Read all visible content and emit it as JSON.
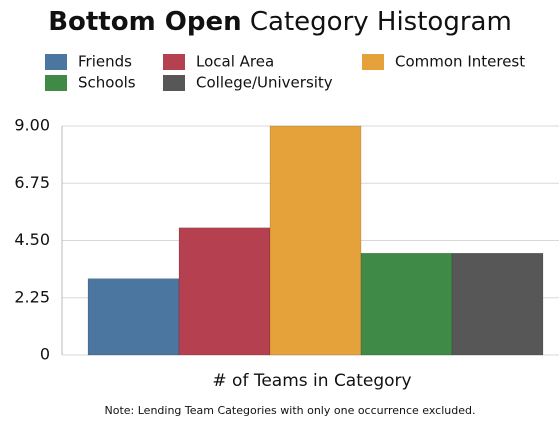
{
  "chart_data": {
    "type": "bar",
    "title_parts": [
      "Bottom Open",
      "Category Histogram"
    ],
    "x_label": "# of Teams in Category",
    "note": "Note: Lending Team Categories with only one occurrence excluded.",
    "series": [
      {
        "name": "Friends",
        "color": "#4a76a0",
        "values": [
          3
        ]
      },
      {
        "name": "Local Area",
        "color": "#b5404f",
        "values": [
          5
        ]
      },
      {
        "name": "Common Interest",
        "color": "#e6a23a",
        "values": [
          9
        ]
      },
      {
        "name": "Schools",
        "color": "#3f8a46",
        "values": [
          4
        ]
      },
      {
        "name": "College/University",
        "color": "#575757",
        "values": [
          4
        ]
      }
    ],
    "ylim": [
      0,
      9
    ],
    "yticks": [
      0,
      2.25,
      {
        "value": 4.5,
        "label": "4.50"
      },
      6.75,
      {
        "value": 9,
        "label": "9.00"
      }
    ],
    "grid": true
  }
}
